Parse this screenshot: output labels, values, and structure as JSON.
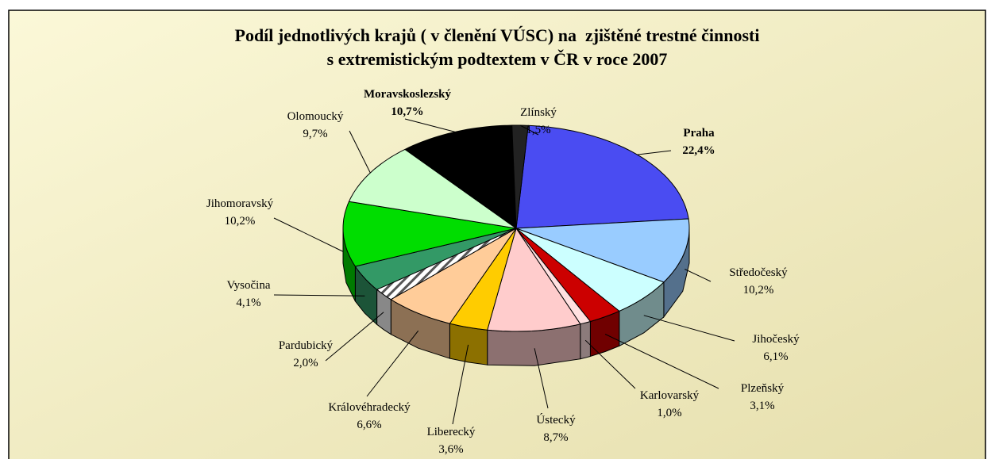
{
  "chart_data": {
    "type": "pie",
    "title": [
      "Podíl jednotlivých krajů ( v členění VÚSC) na  zjištěné trestné činnosti",
      "s extremistickým podtextem v ČR v roce 2007"
    ],
    "categories": [
      "Praha",
      "Středočeský",
      "Jihočeský",
      "Plzeňský",
      "Karlovarský",
      "Ústecký",
      "Liberecký",
      "Královéhradecký",
      "Pardubický",
      "Vysočina",
      "Jihomoravský",
      "Olomoucký",
      "Moravskoslezský",
      "Zlínský"
    ],
    "values": [
      22.4,
      10.2,
      6.1,
      3.1,
      1.0,
      8.7,
      3.6,
      6.6,
      2.0,
      4.1,
      10.2,
      9.7,
      10.7,
      1.5
    ],
    "value_labels": [
      "22,4%",
      "10,2%",
      "6,1%",
      "3,1%",
      "1,0%",
      "8,7%",
      "3,6%",
      "6,6%",
      "2,0%",
      "4,1%",
      "10,2%",
      "9,7%",
      "10,7%",
      "1,5%"
    ],
    "colors": [
      "#4a4cf2",
      "#99ccff",
      "#ccffff",
      "#cc0000",
      "#ffe0e0",
      "#ffcccc",
      "#ffcc00",
      "#ffcc99",
      "#ffffff",
      "#339966",
      "#00dd00",
      "#ccffcc",
      "#000000",
      "#333333"
    ]
  }
}
